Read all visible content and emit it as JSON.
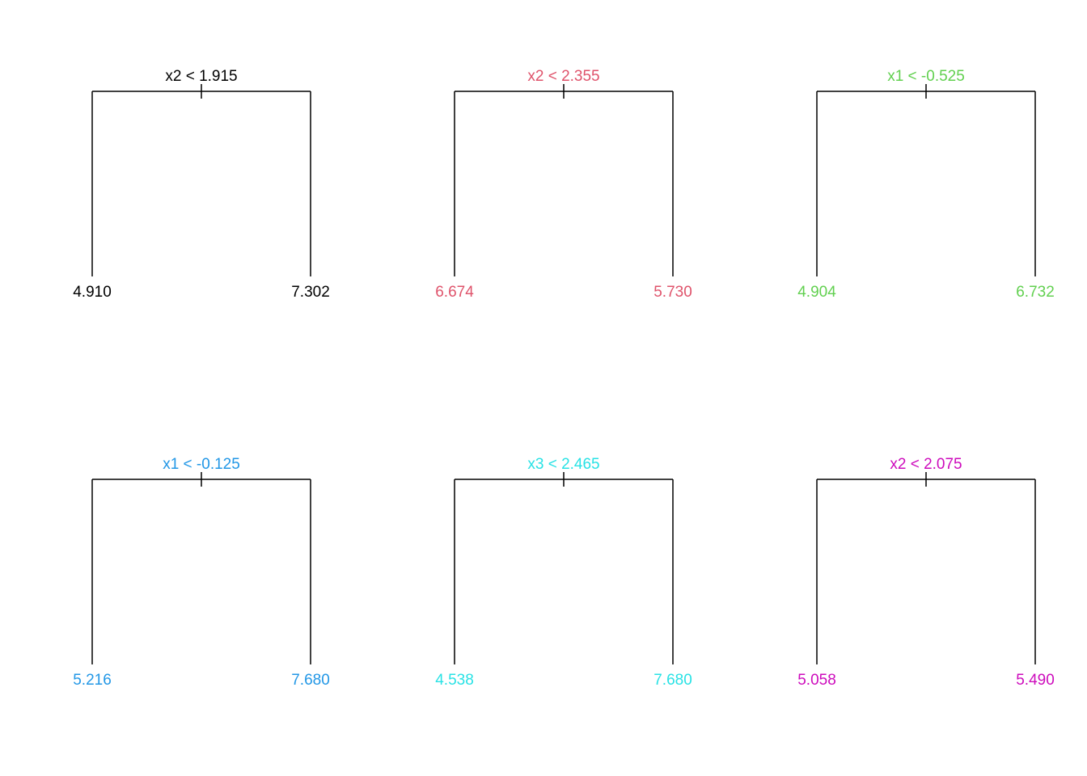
{
  "trees": [
    {
      "split": "x2 < 1.915",
      "left": "4.910",
      "right": "7.302",
      "color": "#000000"
    },
    {
      "split": "x2 < 2.355",
      "left": "6.674",
      "right": "5.730",
      "color": "#DF536B"
    },
    {
      "split": "x1 < -0.525",
      "left": "4.904",
      "right": "6.732",
      "color": "#61D04F"
    },
    {
      "split": "x1 < -0.125",
      "left": "5.216",
      "right": "7.680",
      "color": "#2297E6"
    },
    {
      "split": "x3 < 2.465",
      "left": "4.538",
      "right": "7.680",
      "color": "#28E2E5"
    },
    {
      "split": "x2 < 2.075",
      "left": "5.058",
      "right": "5.490",
      "color": "#CD0BBC"
    }
  ]
}
